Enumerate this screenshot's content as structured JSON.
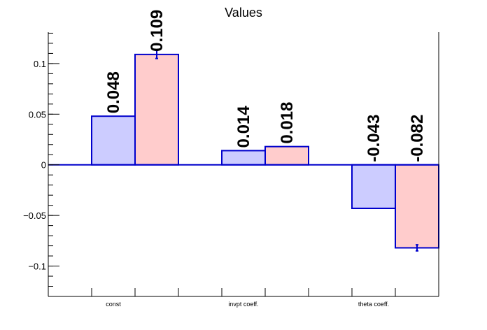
{
  "chart_data": {
    "type": "bar",
    "title": "Values",
    "categories": [
      "const",
      "invpt coeff.",
      "theta coeff."
    ],
    "series": [
      {
        "values": [
          0.048,
          0.014,
          -0.043
        ],
        "labels": [
          "0.048",
          "0.014",
          "-0.043"
        ],
        "errors": [
          0,
          0,
          0
        ],
        "color": "#ccccff"
      },
      {
        "values": [
          0.109,
          0.018,
          -0.082
        ],
        "labels": [
          "0.109",
          "0.018",
          "-0.082"
        ],
        "errors": [
          0.004,
          0,
          0.003
        ],
        "color": "#ffcccc"
      }
    ],
    "yticks": [
      -0.1,
      -0.05,
      0,
      0.05,
      0.1
    ],
    "ytick_labels": [
      "−0.1",
      "−0.05",
      "0",
      "0.05",
      "0.1"
    ],
    "ylim": [
      -0.13,
      0.131
    ],
    "edge_color": "#0000cc",
    "grid": false,
    "legend": "none"
  }
}
